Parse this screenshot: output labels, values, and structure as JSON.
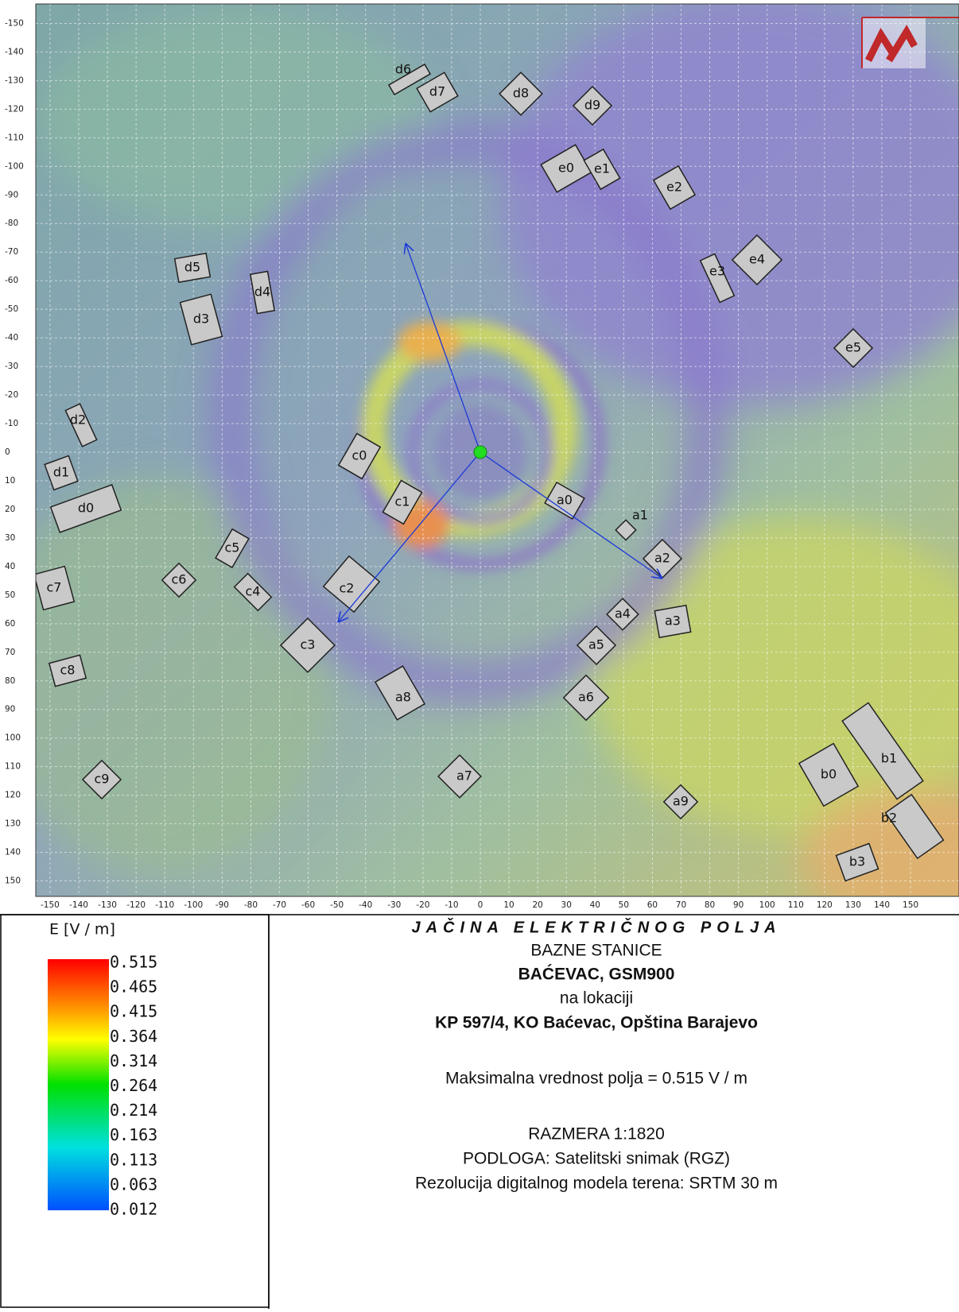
{
  "map": {
    "xticks": [
      -150,
      -140,
      -130,
      -120,
      -110,
      -100,
      -90,
      -80,
      -70,
      -60,
      -50,
      -40,
      -30,
      -20,
      -10,
      0,
      10,
      20,
      30,
      40,
      50,
      60,
      70,
      80,
      90,
      100,
      110,
      120,
      130,
      140,
      150
    ],
    "yticks": [
      -150,
      -140,
      -130,
      -120,
      -110,
      -100,
      -90,
      -80,
      -70,
      -60,
      -50,
      -40,
      -30,
      -20,
      -10,
      0,
      10,
      20,
      30,
      40,
      50,
      60,
      70,
      80,
      90,
      100,
      110,
      120,
      130,
      140,
      150
    ],
    "buildings": [
      "d6",
      "d7",
      "d8",
      "d9",
      "e0",
      "e1",
      "e2",
      "e3",
      "e4",
      "e5",
      "d5",
      "d4",
      "d3",
      "d2",
      "d1",
      "d0",
      "c0",
      "c1",
      "a0",
      "a1",
      "a2",
      "a3",
      "a4",
      "a5",
      "a6",
      "a8",
      "a7",
      "a9",
      "c5",
      "c4",
      "c6",
      "c7",
      "c8",
      "c9",
      "c2",
      "c3",
      "b0",
      "b1",
      "b2",
      "b3"
    ]
  },
  "legend": {
    "title": "E [V / m]",
    "values": [
      0.515,
      0.465,
      0.415,
      0.364,
      0.314,
      0.264,
      0.214,
      0.163,
      0.113,
      0.063,
      0.012
    ]
  },
  "info": {
    "title": "JAČINA ELEKTRIČNOG POLJA",
    "lines": [
      "BAZNE STANICE",
      "BAĆEVAC, GSM900",
      "na lokaciji",
      "KP 597/4, KO Baćevac, Opština Barajevo",
      "Maksimalna vrednost polja = 0.515 V / m",
      "RAZMERA 1:1820",
      "PODLOGA: Satelitski snimak (RGZ)",
      "Rezolucija digitalnog modela terena: SRTM 30 m"
    ]
  }
}
